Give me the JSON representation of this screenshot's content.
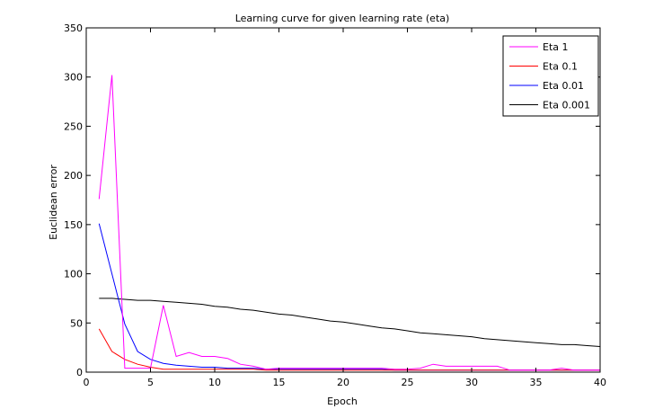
{
  "chart_data": {
    "type": "line",
    "title": "Learning curve for given learning rate (eta)",
    "xlabel": "Epoch",
    "ylabel": "Euclidean error",
    "xlim": [
      0,
      40
    ],
    "ylim": [
      0,
      350
    ],
    "xticks": [
      0,
      5,
      10,
      15,
      20,
      25,
      30,
      35,
      40
    ],
    "yticks": [
      0,
      50,
      100,
      150,
      200,
      250,
      300,
      350
    ],
    "grid": false,
    "legend_position": "top-right",
    "x": [
      1,
      2,
      3,
      4,
      5,
      6,
      7,
      8,
      9,
      10,
      11,
      12,
      13,
      14,
      15,
      16,
      17,
      18,
      19,
      20,
      21,
      22,
      23,
      24,
      25,
      26,
      27,
      28,
      29,
      30,
      31,
      32,
      33,
      34,
      35,
      36,
      37,
      38,
      39,
      40
    ],
    "series": [
      {
        "name": "Eta 1",
        "color": "#ff00ff",
        "values": [
          176,
          302,
          4,
          4,
          4,
          68,
          16,
          20,
          16,
          16,
          14,
          8,
          6,
          3,
          4,
          4,
          4,
          4,
          4,
          4,
          4,
          4,
          4,
          3,
          3,
          4,
          8,
          6,
          6,
          6,
          6,
          6,
          2,
          2,
          2,
          2,
          4,
          2,
          2,
          2
        ]
      },
      {
        "name": "Eta 0.1",
        "color": "#ff0000",
        "values": [
          44,
          21,
          13,
          8,
          5,
          3,
          3,
          3,
          3,
          3,
          3,
          3,
          3,
          2,
          2,
          2,
          2,
          2,
          2,
          2,
          2,
          2,
          2,
          2,
          2,
          2,
          2,
          2,
          2,
          2,
          2,
          2,
          2,
          2,
          2,
          2,
          2,
          2,
          2,
          2
        ]
      },
      {
        "name": "Eta 0.01",
        "color": "#0000ff",
        "values": [
          151,
          100,
          49,
          21,
          13,
          9,
          7,
          6,
          5,
          5,
          4,
          4,
          4,
          3,
          3,
          3,
          3,
          3,
          3,
          3,
          3,
          3,
          3,
          2,
          2,
          2,
          2,
          2,
          2,
          2,
          2,
          2,
          2,
          2,
          2,
          2,
          2,
          2,
          2,
          2
        ]
      },
      {
        "name": "Eta 0.001",
        "color": "#000000",
        "values": [
          75,
          75,
          74,
          73,
          73,
          72,
          71,
          70,
          69,
          67,
          66,
          64,
          63,
          61,
          59,
          58,
          56,
          54,
          52,
          51,
          49,
          47,
          45,
          44,
          42,
          40,
          39,
          38,
          37,
          36,
          34,
          33,
          32,
          31,
          30,
          29,
          28,
          28,
          27,
          26
        ]
      }
    ]
  }
}
